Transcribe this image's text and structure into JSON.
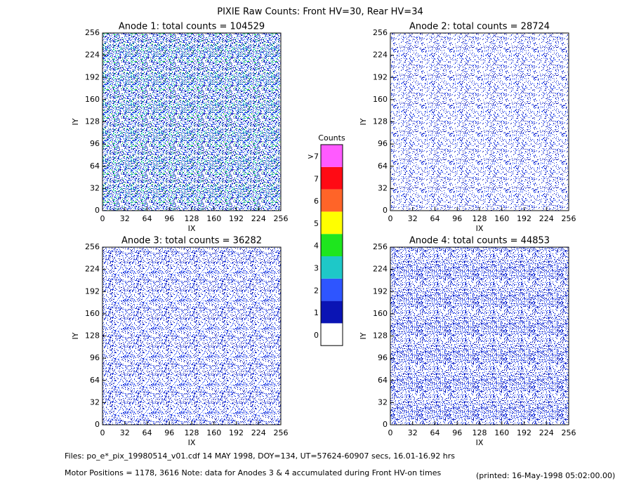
{
  "title": "PIXIE Raw Counts:  Front HV=30, Rear HV=34",
  "chart_data": [
    {
      "type": "heatmap",
      "title": "Anode 1: total counts = 104529",
      "xlabel": "IX",
      "ylabel": "IY",
      "xlim": [
        0,
        256
      ],
      "ylim": [
        0,
        256
      ],
      "xticks": [
        0,
        32,
        64,
        96,
        128,
        160,
        192,
        224,
        256
      ],
      "yticks": [
        0,
        32,
        64,
        96,
        128,
        160,
        192,
        224,
        256
      ]
    },
    {
      "type": "heatmap",
      "title": "Anode 2: total counts = 28724",
      "xlabel": "IX",
      "ylabel": "IY",
      "xlim": [
        0,
        256
      ],
      "ylim": [
        0,
        256
      ],
      "xticks": [
        0,
        32,
        64,
        96,
        128,
        160,
        192,
        224,
        256
      ],
      "yticks": [
        0,
        32,
        64,
        96,
        128,
        160,
        192,
        224,
        256
      ]
    },
    {
      "type": "heatmap",
      "title": "Anode 3: total counts = 36282",
      "xlabel": "IX",
      "ylabel": "IY",
      "xlim": [
        0,
        256
      ],
      "ylim": [
        0,
        256
      ],
      "xticks": [
        0,
        32,
        64,
        96,
        128,
        160,
        192,
        224,
        256
      ],
      "yticks": [
        0,
        32,
        64,
        96,
        128,
        160,
        192,
        224,
        256
      ]
    },
    {
      "type": "heatmap",
      "title": "Anode 4: total counts = 44853",
      "xlabel": "IX",
      "ylabel": "IY",
      "xlim": [
        0,
        256
      ],
      "ylim": [
        0,
        256
      ],
      "xticks": [
        0,
        32,
        64,
        96,
        128,
        160,
        192,
        224,
        256
      ],
      "yticks": [
        0,
        32,
        64,
        96,
        128,
        160,
        192,
        224,
        256
      ]
    }
  ],
  "colorbar": {
    "title": "Counts",
    "levels": [
      {
        "label": "0",
        "color": "#ffffff"
      },
      {
        "label": "1",
        "color": "#0a14b4"
      },
      {
        "label": "2",
        "color": "#2e55ff"
      },
      {
        "label": "3",
        "color": "#1ec8c8"
      },
      {
        "label": "4",
        "color": "#1ee61e"
      },
      {
        "label": "5",
        "color": "#ffff00"
      },
      {
        "label": "6",
        "color": "#ff6428"
      },
      {
        "label": "7",
        "color": "#ff0a14"
      },
      {
        "label": ">7",
        "color": "#ff5aff"
      }
    ]
  },
  "footer": {
    "files": "Files: po_e*_pix_19980514_v01.cdf     14 MAY 1998, DOY=134, UT=57624-60907 secs, 16.01-16.92 hrs",
    "motor": "Motor Positions = 1178, 3616   Note: data for Anodes 3 & 4 accumulated during Front HV-on times",
    "printed": "(printed: 16-May-1998 05:02:00.00)"
  }
}
